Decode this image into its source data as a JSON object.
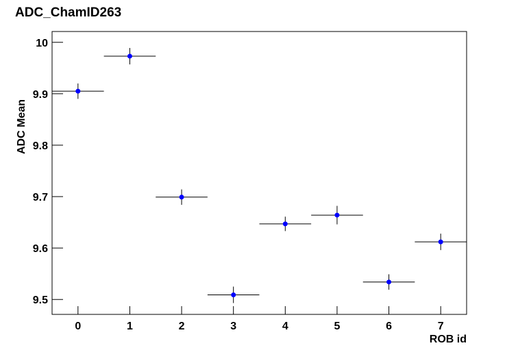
{
  "chart_data": {
    "type": "errorbar",
    "title": "ADC_ChamID263",
    "x_label": "ROB id",
    "y_label": "ADC Mean",
    "x": [
      0,
      1,
      2,
      3,
      4,
      5,
      6,
      7
    ],
    "values": [
      9.905,
      9.973,
      9.699,
      9.509,
      9.647,
      9.664,
      9.534,
      9.612
    ],
    "errors": [
      0.015,
      0.016,
      0.015,
      0.016,
      0.014,
      0.018,
      0.015,
      0.016
    ],
    "xerr": [
      0.5,
      0.5,
      0.5,
      0.5,
      0.5,
      0.5,
      0.5,
      0.5
    ],
    "color": "#0000ff",
    "xlim": [
      -0.5,
      7.5
    ],
    "xticks": [
      0,
      1,
      2,
      3,
      4,
      5,
      6,
      7
    ],
    "ylim": [
      9.471,
      10.021
    ],
    "yticks": [
      9.5,
      9.6,
      9.7,
      9.8,
      9.9,
      10
    ]
  }
}
